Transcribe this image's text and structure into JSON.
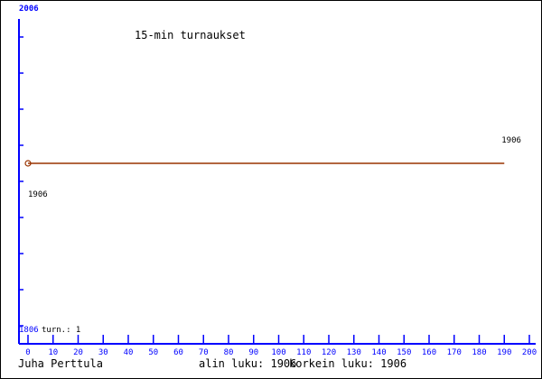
{
  "chart_data": {
    "type": "line",
    "title": "15-min turnaukset",
    "x": [
      0,
      190
    ],
    "series": [
      {
        "values": [
          1906,
          1906
        ],
        "color": "#993300"
      }
    ],
    "xlim": [
      0,
      200
    ],
    "ylim": [
      1806,
      2006
    ],
    "x_ticks": [
      0,
      10,
      20,
      30,
      40,
      50,
      60,
      70,
      80,
      90,
      100,
      110,
      120,
      130,
      140,
      150,
      160,
      170,
      180,
      190,
      200
    ],
    "y_top_label": "2006",
    "y_bottom_label": "1806",
    "point_labels": [
      "1906",
      "1906"
    ],
    "count_label": "turn.: 1",
    "axis_color": "#0000ff",
    "grid": false
  },
  "footer": {
    "author": "Juha Perttula",
    "min_label": "alin luku: 1906",
    "max_label": "korkein luku: 1906"
  }
}
